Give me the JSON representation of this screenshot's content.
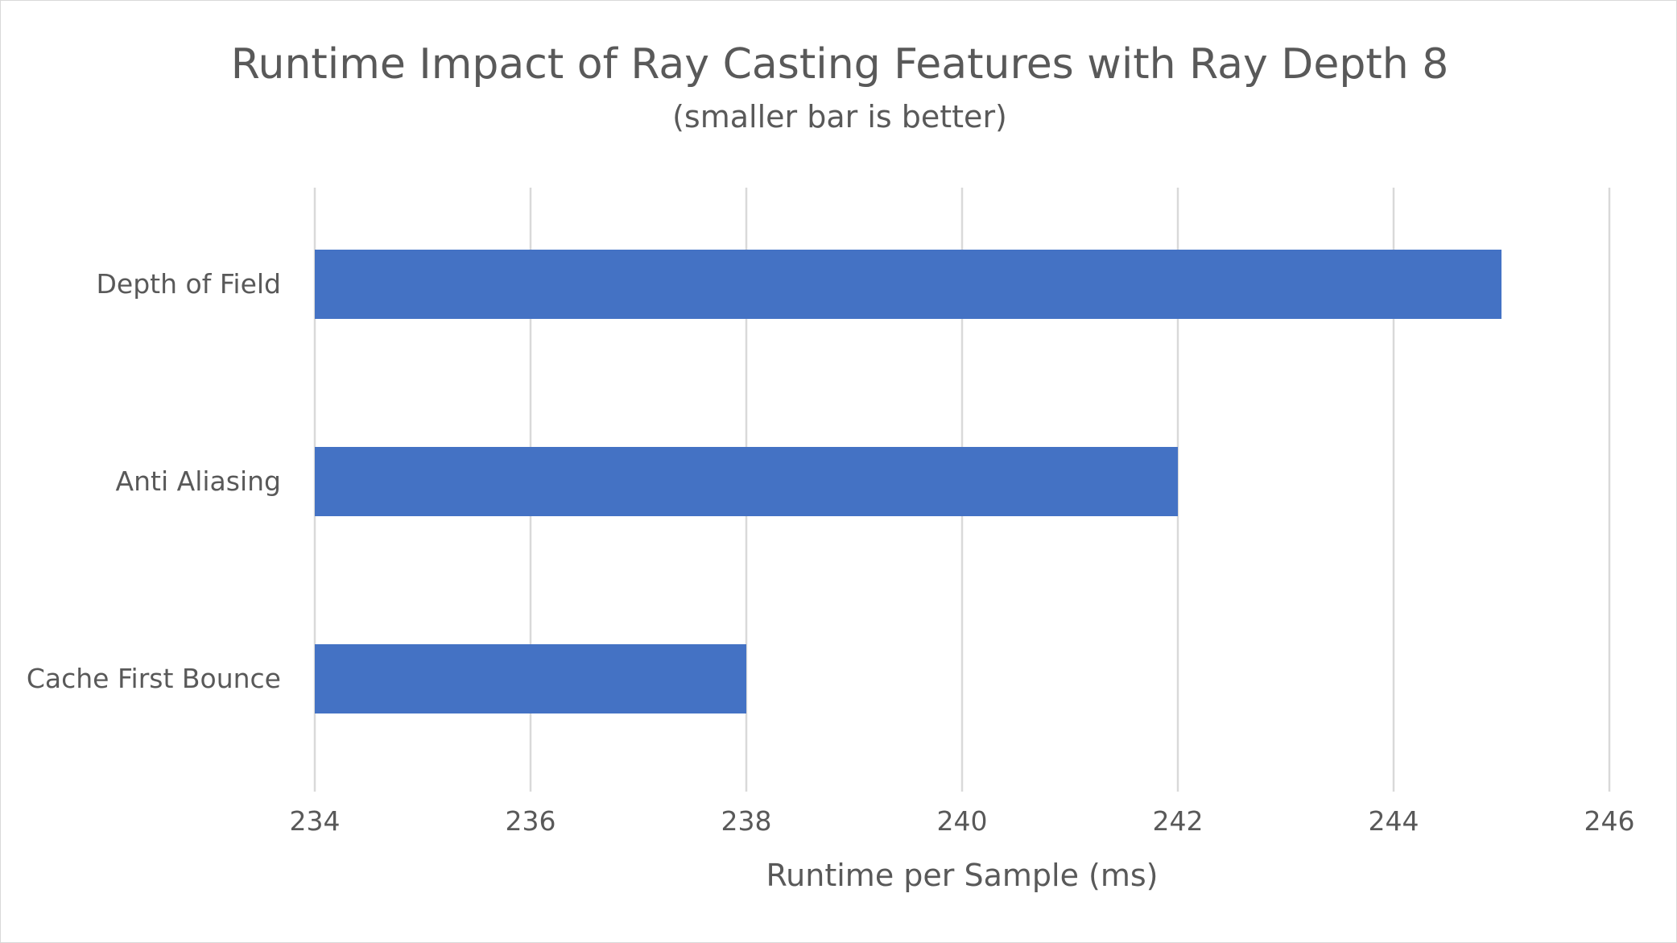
{
  "chart_data": {
    "type": "bar",
    "orientation": "horizontal",
    "title": "Runtime Impact of Ray Casting Features with Ray Depth 8",
    "subtitle": "(smaller bar is better)",
    "xlabel": "Runtime per Sample (ms)",
    "ylabel": "",
    "categories": [
      "Depth of Field",
      "Anti Aliasing",
      "Cache First Bounce"
    ],
    "values": [
      245,
      242,
      238
    ],
    "xlim": [
      234,
      246
    ],
    "x_ticks": [
      "234",
      "236",
      "238",
      "240",
      "242",
      "244",
      "246"
    ],
    "grid": "vertical",
    "legend": "none",
    "bar_color": "#4472c4"
  }
}
